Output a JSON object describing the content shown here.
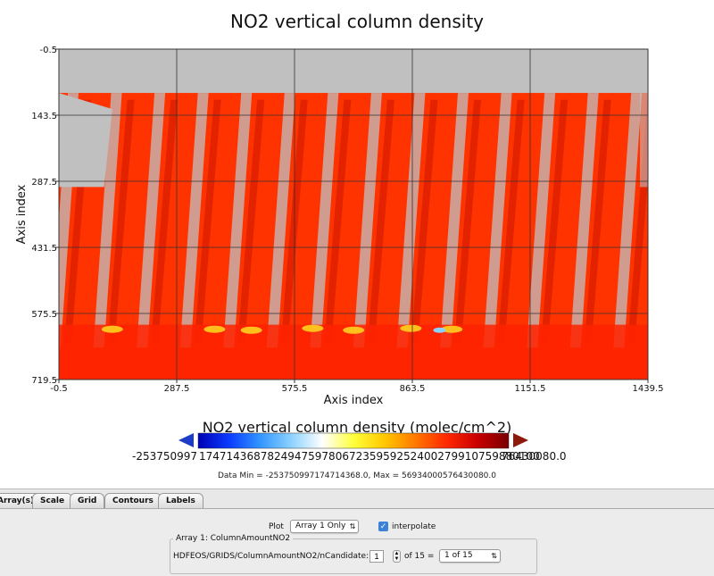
{
  "chart_data": {
    "type": "heatmap",
    "title": "NO2 vertical column density",
    "xlabel": "Axis index",
    "ylabel": "Axis index",
    "xlim": [
      -0.5,
      1439.5
    ],
    "ylim": [
      -0.5,
      719.5
    ],
    "y_inverted": true,
    "x_ticks": [
      "-0.5",
      "287.5",
      "575.5",
      "863.5",
      "1151.5",
      "1439.5"
    ],
    "y_ticks": [
      "-0.5",
      "143.5",
      "287.5",
      "431.5",
      "575.5",
      "719.5"
    ],
    "grid": true,
    "missing_color": "#c0c0c0",
    "dominant_color": "#ff3300",
    "swath_count": 14,
    "colorbar": {
      "title": "NO2 vertical column density (molec/cm^2)",
      "min_label": "-253750997",
      "overlap_label": "17471436878249475978067235959252400279910759880100",
      "max_label": "76430080.0",
      "colors": [
        "#0000b4",
        "#0a3cff",
        "#3296ff",
        "#8cd2ff",
        "#ffffff",
        "#ffff3c",
        "#ffc800",
        "#ff7800",
        "#ff2800",
        "#c80000",
        "#780000"
      ]
    },
    "data_min": -2.5375099717471437e+17,
    "data_max": 5.693400057643008e+16
  },
  "data_range_text": "Data Min = -253750997174714368.0, Max = 56934000576430080.0",
  "tabs": [
    "Array(s)",
    "Scale",
    "Grid",
    "Contours",
    "Labels"
  ],
  "controls": {
    "plot_label": "Plot",
    "plot_select": "Array 1 Only",
    "interpolate_label": "interpolate",
    "interpolate_checked": true,
    "group_title": "Array 1: ColumnAmountNO2",
    "dim_label": "HDFEOS/GRIDS/ColumnAmountNO2/nCandidate:",
    "dim_value": "1",
    "of_text": "of 15 =",
    "dim_select": "1 of 15"
  }
}
